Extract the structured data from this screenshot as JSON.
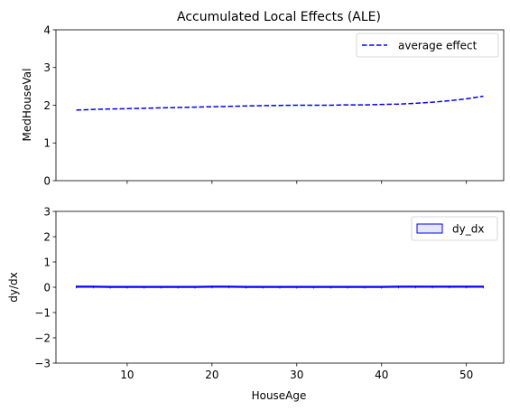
{
  "chart_data": [
    {
      "type": "line",
      "title": "Accumulated Local Effects (ALE)",
      "xlabel": "",
      "ylabel": "MedHouseVal",
      "xlim": [
        1.6,
        54.4
      ],
      "ylim": [
        0,
        4
      ],
      "xticks": [
        10,
        20,
        30,
        40,
        50
      ],
      "yticks": [
        0,
        1,
        2,
        3,
        4
      ],
      "yticklabels": [
        "0",
        "1",
        "2",
        "3",
        "4"
      ],
      "show_xticklabels": false,
      "legend": {
        "position": "top-right",
        "entries": [
          "average effect"
        ]
      },
      "series": [
        {
          "name": "average effect",
          "color": "#0000ff",
          "style": "dashed",
          "x": [
            4,
            6,
            8,
            10,
            12,
            14,
            16,
            18,
            20,
            22,
            24,
            26,
            28,
            30,
            32,
            34,
            36,
            38,
            40,
            42,
            44,
            46,
            48,
            50,
            52
          ],
          "y": [
            1.87,
            1.89,
            1.9,
            1.91,
            1.92,
            1.93,
            1.94,
            1.95,
            1.96,
            1.97,
            1.98,
            1.99,
            1.995,
            2.0,
            2.0,
            2.0,
            2.01,
            2.01,
            2.02,
            2.03,
            2.05,
            2.08,
            2.12,
            2.17,
            2.24
          ]
        }
      ]
    },
    {
      "type": "area",
      "title": "",
      "xlabel": "HouseAge",
      "ylabel": "dy/dx",
      "xlim": [
        1.6,
        54.4
      ],
      "ylim": [
        -3,
        3
      ],
      "xticks": [
        10,
        20,
        30,
        40,
        50
      ],
      "xticklabels": [
        "10",
        "20",
        "30",
        "40",
        "50"
      ],
      "yticks": [
        -3,
        -2,
        -1,
        0,
        1,
        2,
        3
      ],
      "yticklabels": [
        "−3",
        "−2",
        "−1",
        "0",
        "1",
        "2",
        "3"
      ],
      "legend": {
        "position": "top-right",
        "entries": [
          "dy_dx"
        ]
      },
      "series": [
        {
          "name": "dy_dx",
          "color": "#0000ff",
          "fill": "#e6e6fa",
          "x": [
            4,
            6,
            8,
            10,
            12,
            14,
            16,
            18,
            20,
            22,
            24,
            26,
            28,
            30,
            32,
            34,
            36,
            38,
            40,
            42,
            44,
            46,
            48,
            50,
            52
          ],
          "y": [
            0.01,
            0.01,
            0.0,
            0.0,
            0.0,
            0.0,
            0.0,
            0.0,
            0.01,
            0.01,
            0.0,
            0.0,
            0.0,
            0.0,
            0.0,
            0.0,
            0.0,
            0.0,
            0.0,
            0.01,
            0.01,
            0.01,
            0.01,
            0.01,
            0.01
          ]
        }
      ]
    }
  ]
}
